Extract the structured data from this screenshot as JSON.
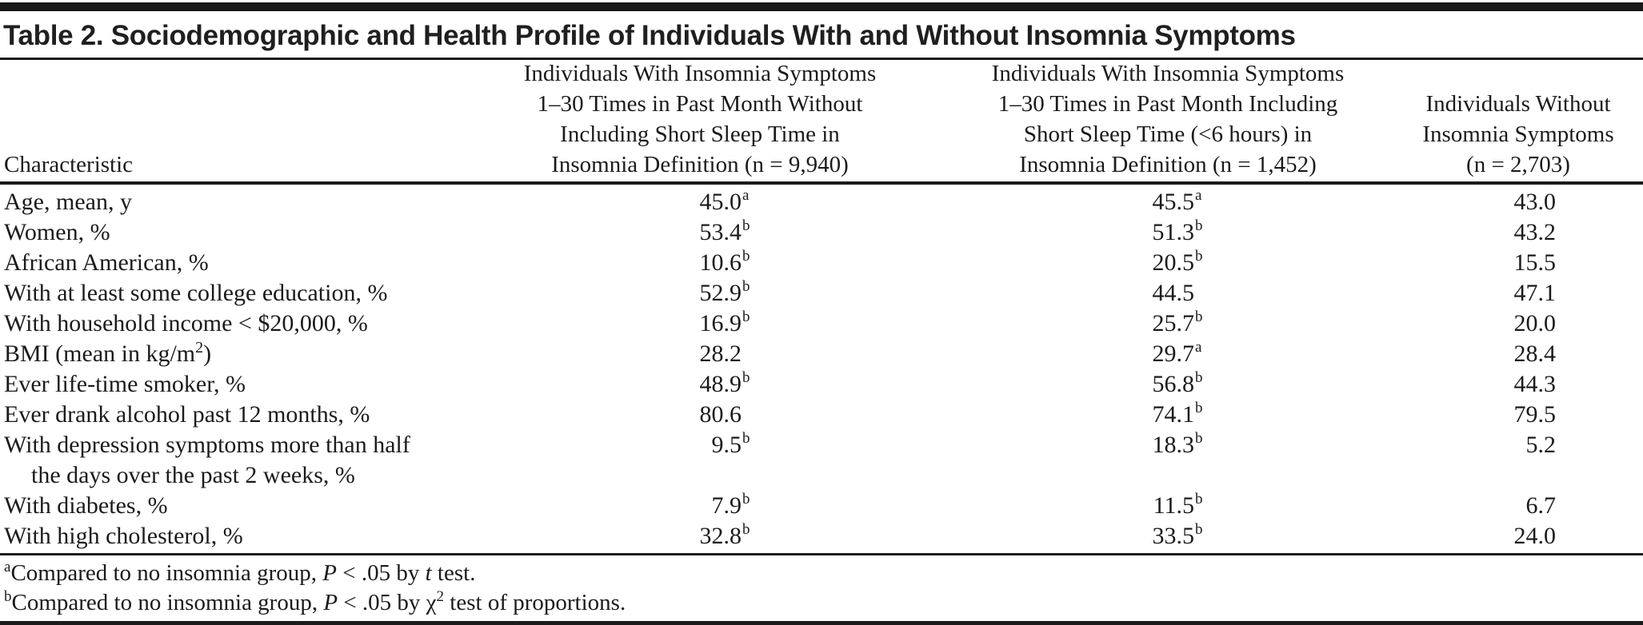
{
  "table": {
    "title": "Table 2. Sociodemographic and Health Profile of Individuals With and Without Insomnia Symptoms",
    "header": {
      "characteristic": "Characteristic",
      "col1_lines": [
        "Individuals With Insomnia Symptoms",
        "1–30 Times in Past Month Without",
        "Including Short Sleep Time in",
        "Insomnia Definition (n = 9,940)"
      ],
      "col2_lines": [
        "Individuals With Insomnia Symptoms",
        "1–30 Times in Past Month Including",
        "Short Sleep Time (<6 hours) in",
        "Insomnia Definition (n = 1,452)"
      ],
      "col3_lines": [
        "Individuals Without",
        "Insomnia Symptoms",
        "(n = 2,703)"
      ]
    },
    "rows": [
      {
        "label": "Age, mean, y",
        "v1": "45.0",
        "v1s": "a",
        "v2": "45.5",
        "v2s": "a",
        "v3": "43.0",
        "v3s": ""
      },
      {
        "label": "Women, %",
        "v1": "53.4",
        "v1s": "b",
        "v2": "51.3",
        "v2s": "b",
        "v3": "43.2",
        "v3s": ""
      },
      {
        "label": "African American, %",
        "v1": "10.6",
        "v1s": "b",
        "v2": "20.5",
        "v2s": "b",
        "v3": "15.5",
        "v3s": ""
      },
      {
        "label": "With at least some college education, %",
        "v1": "52.9",
        "v1s": "b",
        "v2": "44.5",
        "v2s": "",
        "v3": "47.1",
        "v3s": ""
      },
      {
        "label": "With household income < $20,000, %",
        "v1": "16.9",
        "v1s": "b",
        "v2": "25.7",
        "v2s": "b",
        "v3": "20.0",
        "v3s": ""
      },
      {
        "label": "BMI (mean in kg/m",
        "labelSup": "2",
        "labelPost": ")",
        "v1": "28.2",
        "v1s": "",
        "v2": "29.7",
        "v2s": "a",
        "v3": "28.4",
        "v3s": ""
      },
      {
        "label": "Ever life-time smoker, %",
        "v1": "48.9",
        "v1s": "b",
        "v2": "56.8",
        "v2s": "b",
        "v3": "44.3",
        "v3s": ""
      },
      {
        "label": "Ever drank alcohol past 12 months, %",
        "v1": "80.6",
        "v1s": "",
        "v2": "74.1",
        "v2s": "b",
        "v3": "79.5",
        "v3s": ""
      },
      {
        "label": "With depression symptoms more than half",
        "label2": "the days over the past 2 weeks, %",
        "v1": "9.5",
        "v1s": "b",
        "v2": "18.3",
        "v2s": "b",
        "v3": "5.2",
        "v3s": ""
      },
      {
        "label": "With diabetes, %",
        "v1": "7.9",
        "v1s": "b",
        "v2": "11.5",
        "v2s": "b",
        "v3": "6.7",
        "v3s": ""
      },
      {
        "label": "With high cholesterol, %",
        "v1": "32.8",
        "v1s": "b",
        "v2": "33.5",
        "v2s": "b",
        "v3": "24.0",
        "v3s": ""
      }
    ],
    "footnotes": {
      "a": {
        "marker": "a",
        "text1": "Compared to no insomnia group, ",
        "italic1": "P",
        "text2": " < .05 by ",
        "italic2": "t",
        "text3": " test."
      },
      "b": {
        "marker": "b",
        "text1": "Compared to no insomnia group, ",
        "italic1": "P",
        "text2": " < .05 by χ",
        "sup": "2",
        "text3": " test of proportions."
      }
    }
  }
}
